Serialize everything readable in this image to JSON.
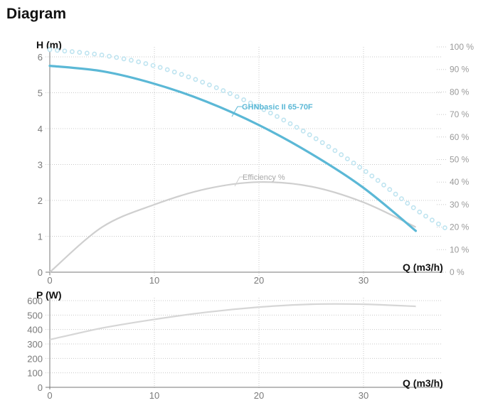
{
  "page": {
    "title": "Diagram"
  },
  "colors": {
    "head_curve": "#5bb8d6",
    "efficiency_curve": "#cfcfcf",
    "power_curve": "#d6d6d6",
    "grid": "#c8c8c8",
    "dots": "#bfe4f0"
  },
  "chart_data": [
    {
      "type": "line",
      "ylabel": "H (m)",
      "xlabel": "Q (m3/h)",
      "xlim": [
        0,
        37
      ],
      "ylim": [
        0,
        6
      ],
      "xticks": [
        "0",
        "10",
        "20",
        "30"
      ],
      "yticks": [
        "0",
        "1",
        "2",
        "3",
        "4",
        "5",
        "6"
      ],
      "y2ticks": [
        "0 %",
        "10 %",
        "20 %",
        "30 %",
        "40 %",
        "50 %",
        "60 %",
        "70 %",
        "80 %",
        "90 %",
        "100 %"
      ],
      "y2lim": [
        0,
        100
      ],
      "grid": true,
      "series": [
        {
          "name": "GHNbasic II 65-70F",
          "axis": "left",
          "style": "solid",
          "x": [
            0,
            5,
            10,
            15,
            20,
            25,
            30,
            35
          ],
          "y": [
            5.75,
            5.6,
            5.25,
            4.75,
            4.1,
            3.3,
            2.35,
            1.15
          ]
        },
        {
          "name": "",
          "axis": "left",
          "style": "dotted",
          "x": [
            0,
            5,
            10,
            15,
            20,
            25,
            30,
            35,
            38
          ],
          "y": [
            6.2,
            6.05,
            5.75,
            5.25,
            4.6,
            3.8,
            2.85,
            1.75,
            1.2
          ]
        },
        {
          "name": "Efficiency %",
          "axis": "right",
          "style": "solid",
          "x": [
            0,
            5,
            10,
            15,
            20,
            25,
            30,
            35
          ],
          "y": [
            0,
            20,
            30,
            37,
            40,
            38,
            31,
            20
          ]
        }
      ]
    },
    {
      "type": "line",
      "ylabel": "P (W)",
      "xlabel": "Q (m3/h)",
      "xlim": [
        0,
        37
      ],
      "ylim": [
        0,
        600
      ],
      "xticks": [
        "0",
        "10",
        "20",
        "30"
      ],
      "yticks": [
        "0",
        "100",
        "200",
        "300",
        "400",
        "500",
        "600"
      ],
      "grid": true,
      "series": [
        {
          "name": "",
          "style": "solid",
          "x": [
            0,
            5,
            10,
            15,
            20,
            25,
            30,
            35
          ],
          "y": [
            330,
            410,
            470,
            520,
            555,
            575,
            575,
            560
          ]
        }
      ]
    }
  ]
}
